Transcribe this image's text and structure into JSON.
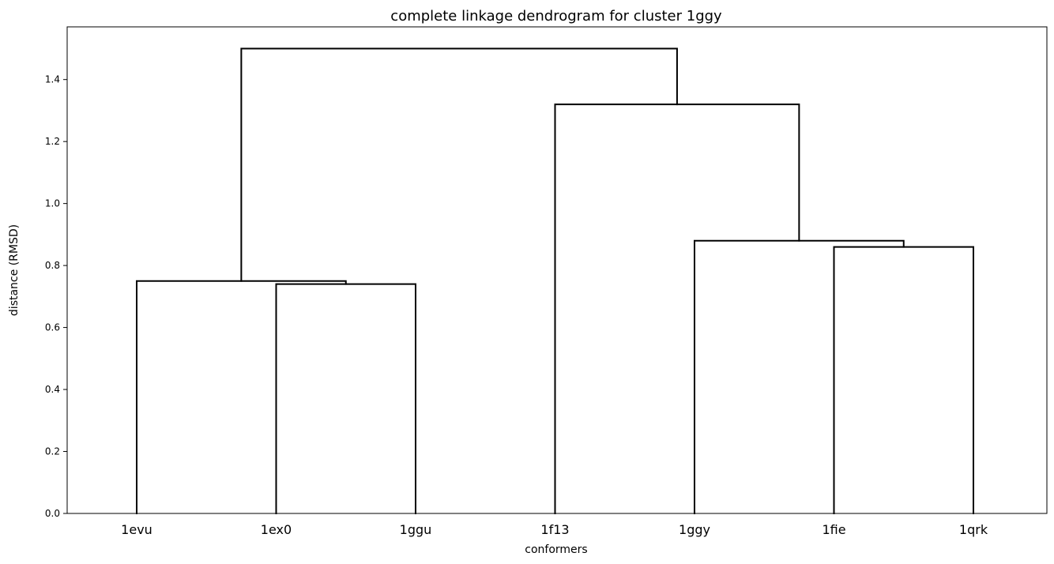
{
  "chart_data": {
    "type": "dendrogram",
    "title": "complete linkage dendrogram for cluster 1ggy",
    "xlabel": "conformers",
    "ylabel": "distance (RMSD)",
    "ylim": [
      0,
      1.57
    ],
    "y_ticks": [
      "0.0",
      "0.2",
      "0.4",
      "0.6",
      "0.8",
      "1.0",
      "1.2",
      "1.4"
    ],
    "y_tick_values": [
      0,
      0.2,
      0.4,
      0.6,
      0.8,
      1.0,
      1.2,
      1.4
    ],
    "leaves": [
      "1evu",
      "1ex0",
      "1ggu",
      "1f13",
      "1ggy",
      "1fie",
      "1qrk"
    ],
    "colors": {
      "links": "#000000",
      "background": "#ffffff"
    },
    "merges": [
      {
        "left": "1ex0",
        "right": "1ggu",
        "height": 0.74
      },
      {
        "left": "1evu",
        "right": "(1ex0, 1ggu)",
        "height": 0.75
      },
      {
        "left": "1fie",
        "right": "1qrk",
        "height": 0.86
      },
      {
        "left": "1ggy",
        "right": "(1fie, 1qrk)",
        "height": 0.88
      },
      {
        "left": "1f13",
        "right": "(1ggy, (1fie, 1qrk))",
        "height": 1.32
      },
      {
        "left": "(1evu, (1ex0, 1ggu))",
        "right": "(1f13, (1ggy, (1fie, 1qrk)))",
        "height": 1.5
      }
    ]
  }
}
